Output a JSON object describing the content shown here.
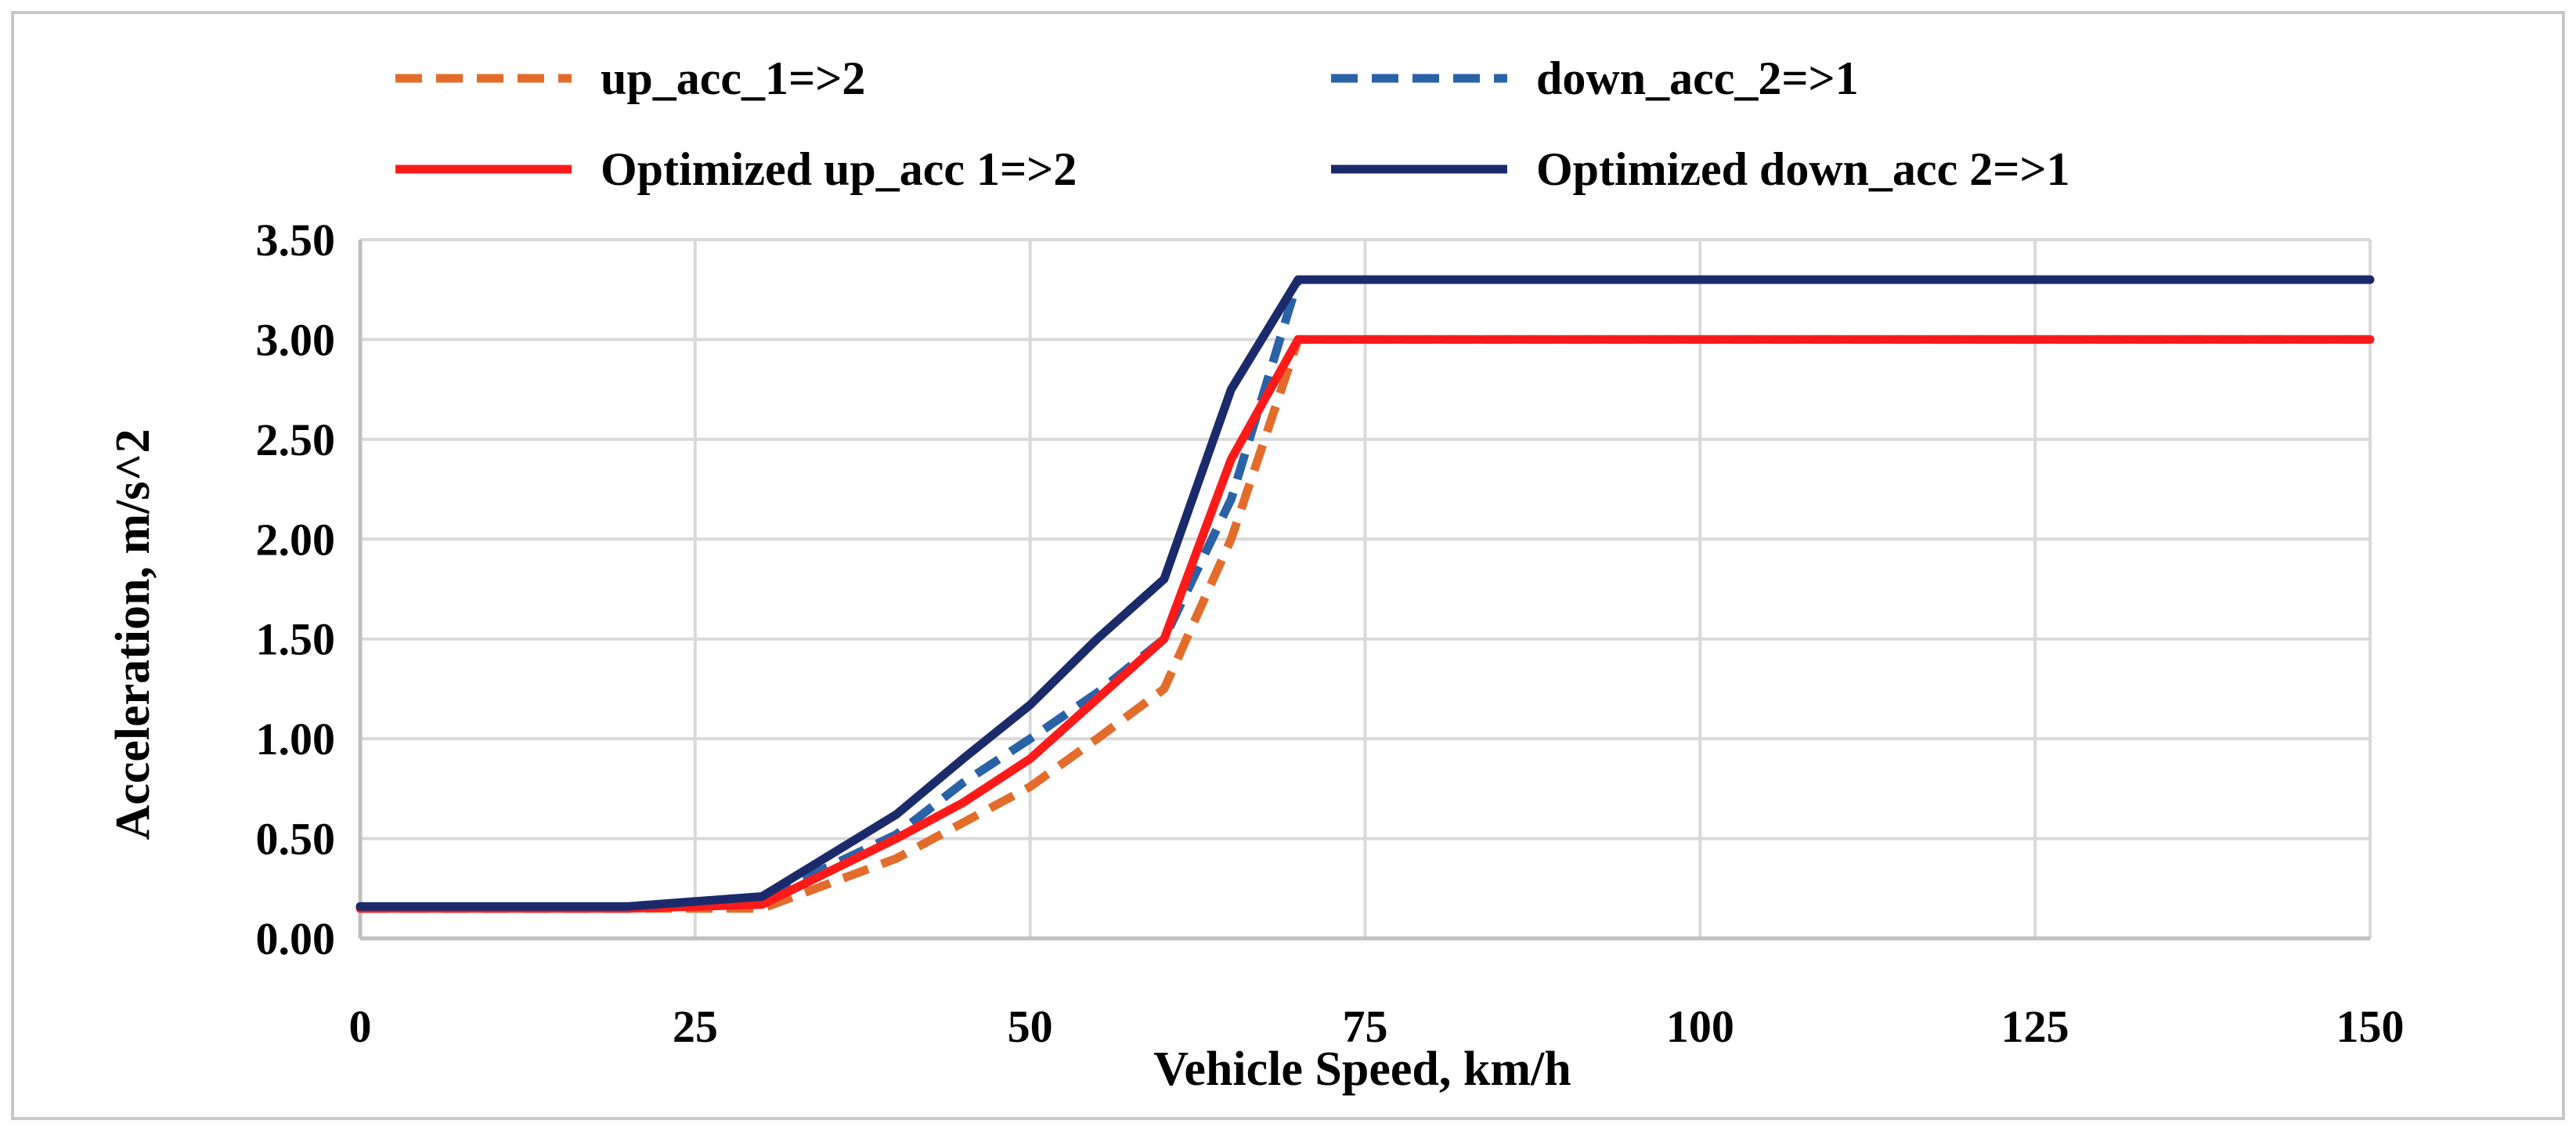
{
  "chart_data": {
    "type": "line",
    "title": "",
    "xlabel": "Vehicle Speed, km/h",
    "ylabel": "Acceleration, m/s^2",
    "xlim": [
      0,
      150
    ],
    "ylim": [
      0,
      3.5
    ],
    "xticks": [
      0,
      25,
      50,
      75,
      100,
      125,
      150
    ],
    "xtick_labels": [
      "0",
      "25",
      "50",
      "75",
      "100",
      "125",
      "150"
    ],
    "yticks": [
      0,
      0.5,
      1.0,
      1.5,
      2.0,
      2.5,
      3.0,
      3.5
    ],
    "ytick_labels": [
      "0.00",
      "0.50",
      "1.00",
      "1.50",
      "2.00",
      "2.50",
      "3.00",
      "3.50"
    ],
    "grid": true,
    "legend_position": "top",
    "series": [
      {
        "name": "up_acc_1=>2",
        "style": "dashed",
        "color": "#E36C2B",
        "x": [
          0,
          10,
          20,
          30,
          40,
          45,
          50,
          55,
          60,
          65,
          70,
          75,
          100,
          125,
          150
        ],
        "y": [
          0.15,
          0.15,
          0.15,
          0.15,
          0.4,
          0.58,
          0.76,
          1.0,
          1.25,
          2.0,
          3.0,
          3.0,
          3.0,
          3.0,
          3.0
        ]
      },
      {
        "name": "down_acc_2=>1",
        "style": "dashed",
        "color": "#2A62A8",
        "x": [
          0,
          10,
          20,
          30,
          40,
          45,
          50,
          55,
          60,
          65,
          70,
          75,
          100,
          125,
          150
        ],
        "y": [
          0.15,
          0.15,
          0.15,
          0.2,
          0.52,
          0.78,
          1.0,
          1.23,
          1.5,
          2.2,
          3.3,
          3.3,
          3.3,
          3.3,
          3.3
        ]
      },
      {
        "name": "Optimized up_acc 1=>2",
        "style": "solid",
        "color": "#FF1A1A",
        "x": [
          0,
          10,
          20,
          30,
          40,
          45,
          50,
          55,
          60,
          65,
          70,
          75,
          100,
          125,
          150
        ],
        "y": [
          0.15,
          0.15,
          0.15,
          0.17,
          0.5,
          0.68,
          0.9,
          1.2,
          1.5,
          2.4,
          3.0,
          3.0,
          3.0,
          3.0,
          3.0
        ]
      },
      {
        "name": "Optimized down_acc 2=>1",
        "style": "solid",
        "color": "#1B2A6B",
        "x": [
          0,
          10,
          20,
          30,
          40,
          45,
          50,
          55,
          60,
          65,
          70,
          75,
          100,
          125,
          150
        ],
        "y": [
          0.16,
          0.16,
          0.16,
          0.21,
          0.62,
          0.9,
          1.17,
          1.5,
          1.8,
          2.75,
          3.3,
          3.3,
          3.3,
          3.3,
          3.3
        ]
      }
    ]
  }
}
